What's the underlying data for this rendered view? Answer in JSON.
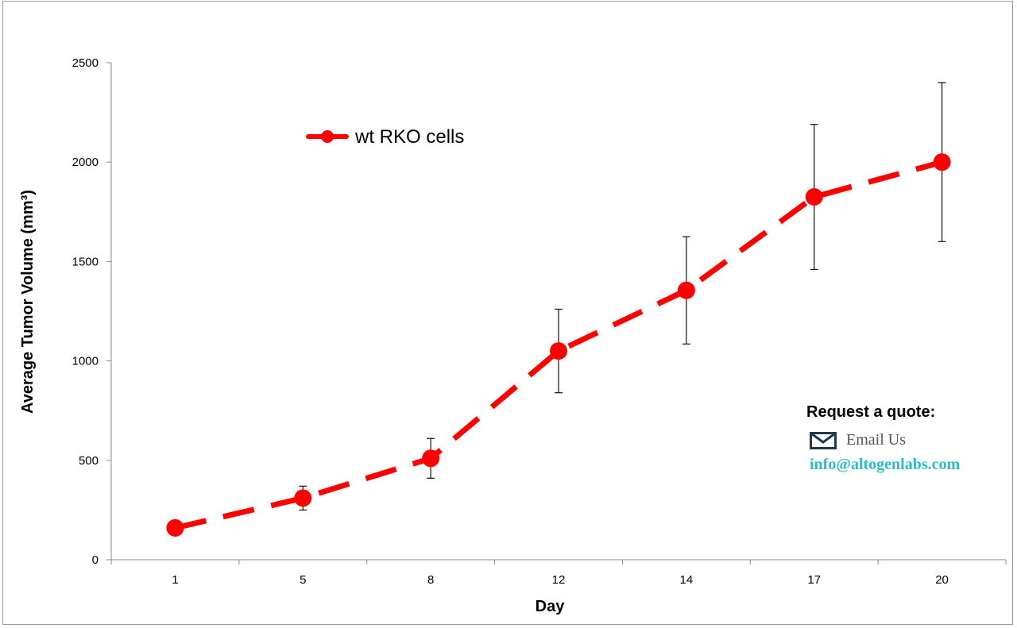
{
  "chart_data": {
    "type": "line",
    "categories": [
      "1",
      "5",
      "8",
      "12",
      "14",
      "17",
      "20"
    ],
    "series": [
      {
        "name": "wt RKO cells",
        "values": [
          160,
          310,
          510,
          1050,
          1355,
          1825,
          2000
        ],
        "error": [
          0,
          60,
          100,
          210,
          270,
          365,
          400
        ],
        "color": "#ff0000"
      }
    ],
    "title": "",
    "xlabel": "Day",
    "ylabel": "Average Tumor Volume (mm³)",
    "ylim": [
      0,
      2500
    ],
    "yticks": [
      "0",
      "500",
      "1000",
      "1500",
      "2000",
      "2500"
    ],
    "grid": false,
    "legend_position": "top-left"
  },
  "quote_box": {
    "title": "Request a quote:",
    "email_label": "Email Us",
    "email_address": "info@altogenlabs.com",
    "icon": "envelope-icon",
    "accent_color": "#2bbcc7"
  }
}
